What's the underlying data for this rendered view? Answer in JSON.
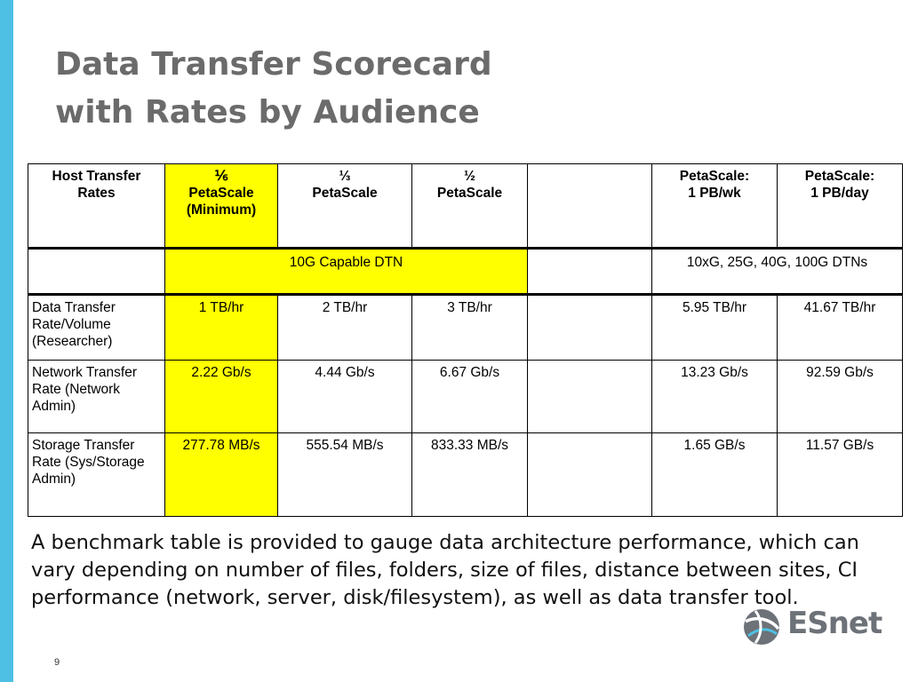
{
  "title": {
    "line1": "Data Transfer Scorecard",
    "line2": "with Rates by Audience"
  },
  "table": {
    "header": {
      "rates": "Host Transfer Rates",
      "c1": "⅙ PetaScale (Minimum)",
      "c1a": "⅙",
      "c1b": "PetaScale",
      "c1c": "(Minimum)",
      "c2a": "⅓",
      "c2b": "PetaScale",
      "c3a": "½",
      "c3b": "PetaScale",
      "c4": "",
      "c5a": "PetaScale:",
      "c5b": "1 PB/wk",
      "c6a": "PetaScale:",
      "c6b": "1 PB/day"
    },
    "dtn": {
      "left": "10G Capable DTN",
      "right": "10xG, 25G, 40G, 100G DTNs"
    },
    "rows": [
      {
        "label": "Data Transfer Rate/Volume (Researcher)",
        "values": [
          "1 TB/hr",
          "2 TB/hr",
          "3 TB/hr",
          "",
          "5.95 TB/hr",
          "41.67 TB/hr"
        ]
      },
      {
        "label": "Network Transfer Rate (Network Admin)",
        "values": [
          "2.22 Gb/s",
          "4.44 Gb/s",
          "6.67 Gb/s",
          "",
          "13.23 Gb/s",
          "92.59 Gb/s"
        ]
      },
      {
        "label": "Storage Transfer Rate (Sys/Storage Admin)",
        "values": [
          "277.78 MB/s",
          "555.54 MB/s",
          "833.33 MB/s",
          "",
          "1.65 GB/s",
          "11.57 GB/s"
        ]
      }
    ]
  },
  "caption": "A benchmark table is provided to gauge data architecture performance, which can vary depending on number of files, folders, size of files, distance between sites, CI performance (network, server, disk/filesystem), as well as data transfer tool.",
  "logo": {
    "text": "ESnet",
    "icon": "esnet-globe-icon"
  },
  "page_number": "9",
  "colors": {
    "accent": "#4ec0e3",
    "highlight": "#ffff00",
    "title": "#6b6b6b"
  }
}
